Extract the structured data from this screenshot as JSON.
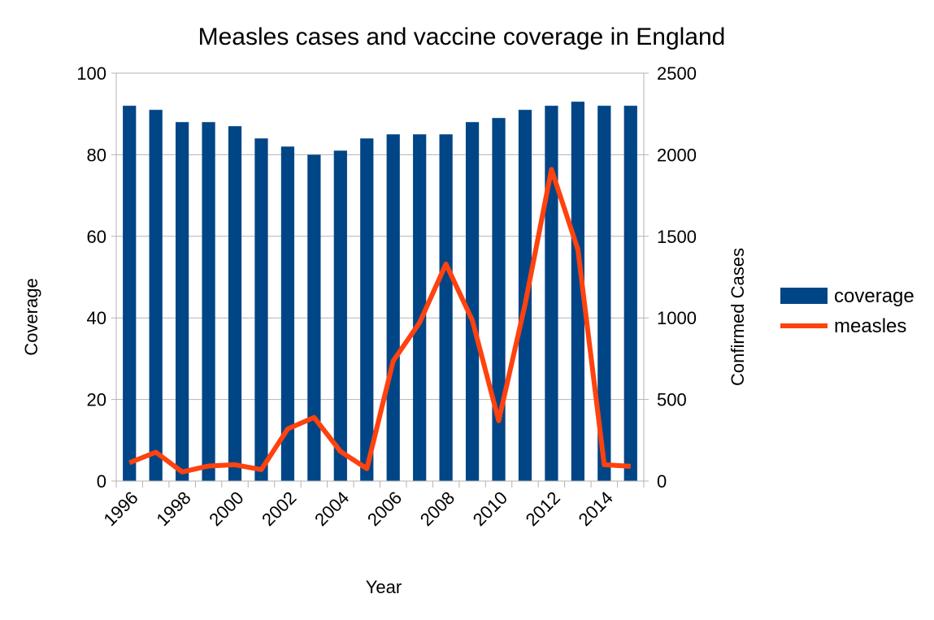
{
  "colors": {
    "coverage": "#004586",
    "measles": "#ff420e",
    "grid": "#b3b3b3",
    "axis": "#b3b3b3"
  },
  "chart_data": {
    "type": "bar",
    "title": "Measles cases and vaccine coverage in England",
    "xlabel": "Year",
    "ylabel": "Coverage",
    "y2label": "Confirmed Cases",
    "ylim": [
      0,
      100
    ],
    "y2lim": [
      0,
      2500
    ],
    "y_ticks": [
      "0",
      "20",
      "40",
      "60",
      "80",
      "100"
    ],
    "y2_ticks": [
      "0",
      "500",
      "1000",
      "1500",
      "2000",
      "2500"
    ],
    "x_tick_labels": [
      "1996",
      "1998",
      "2000",
      "2002",
      "2004",
      "2006",
      "2008",
      "2010",
      "2012",
      "2014"
    ],
    "grid": true,
    "legend_position": "right",
    "categories": [
      1996,
      1997,
      1998,
      1999,
      2000,
      2001,
      2002,
      2003,
      2004,
      2005,
      2006,
      2007,
      2008,
      2009,
      2010,
      2011,
      2012,
      2013,
      2014,
      2015
    ],
    "series": [
      {
        "name": "coverage",
        "type": "bar",
        "axis": "left",
        "values": [
          92,
          91,
          88,
          88,
          87,
          84,
          82,
          80,
          81,
          84,
          85,
          85,
          85,
          88,
          89,
          91,
          92,
          93,
          92,
          92
        ]
      },
      {
        "name": "measles",
        "type": "line",
        "axis": "right",
        "values": [
          112,
          177,
          56,
          92,
          100,
          70,
          319,
          390,
          182,
          76,
          736,
          971,
          1330,
          985,
          370,
          1084,
          1910,
          1420,
          100,
          90
        ]
      }
    ]
  }
}
